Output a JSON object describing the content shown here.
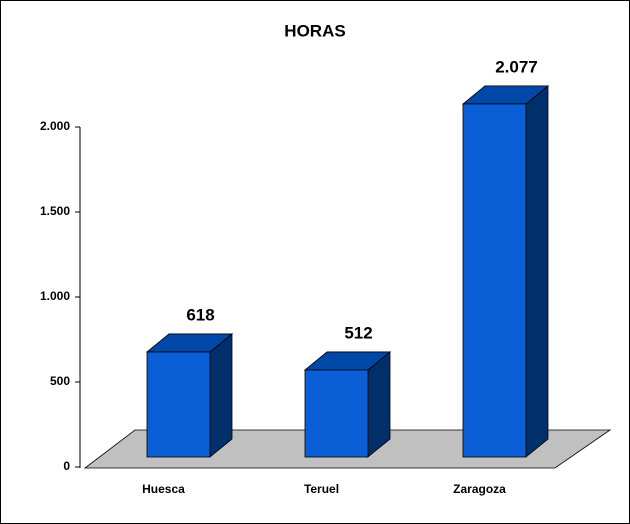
{
  "chart_data": {
    "type": "bar3d",
    "title": "HORAS",
    "categories": [
      "Huesca",
      "Teruel",
      "Zaragoza"
    ],
    "values": [
      618,
      512,
      2077
    ],
    "value_labels": [
      "618",
      "512",
      "2.077"
    ],
    "color": "#0a5fd6",
    "ylim": [
      0,
      2000
    ],
    "yticks": [
      0,
      500,
      {
        "value": 1000,
        "label": "1.000"
      },
      {
        "value": 1500,
        "label": "1.500"
      },
      {
        "value": 2000,
        "label": "2.000"
      }
    ]
  }
}
